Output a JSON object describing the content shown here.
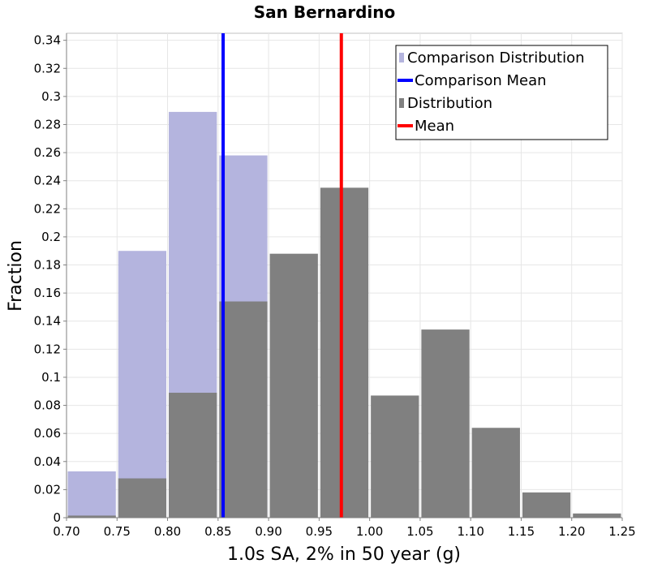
{
  "chart_data": {
    "type": "bar",
    "title": "San Bernardino",
    "xlabel": "1.0s SA, 2% in 50 year (g)",
    "ylabel": "Fraction",
    "xlim": [
      0.7,
      1.25
    ],
    "ylim": [
      0,
      0.345
    ],
    "x_ticks": [
      "0.70",
      "0.75",
      "0.80",
      "0.85",
      "0.90",
      "0.95",
      "1.00",
      "1.05",
      "1.10",
      "1.15",
      "1.20",
      "1.25"
    ],
    "y_ticks": [
      "0",
      "0.02",
      "0.04",
      "0.06",
      "0.08",
      "0.1",
      "0.12",
      "0.14",
      "0.16",
      "0.18",
      "0.2",
      "0.22",
      "0.24",
      "0.26",
      "0.28",
      "0.3",
      "0.32",
      "0.34"
    ],
    "bin_width": 0.05,
    "bin_starts": [
      0.7,
      0.75,
      0.8,
      0.85,
      0.9,
      0.95,
      1.0,
      1.05,
      1.1,
      1.15,
      1.2
    ],
    "grid": true,
    "legend_position": "top-right",
    "series": [
      {
        "name": "Comparison Distribution",
        "kind": "histogram",
        "color": "#b4b4de",
        "values": [
          0.033,
          0.19,
          0.289,
          0.258,
          0,
          0,
          0,
          0,
          0,
          0,
          0
        ]
      },
      {
        "name": "Comparison Mean",
        "kind": "vline",
        "color": "#0000ff",
        "x": 0.855
      },
      {
        "name": "Distribution",
        "kind": "histogram",
        "color": "#808080",
        "values": [
          0.0015,
          0.028,
          0.089,
          0.154,
          0.188,
          0.235,
          0.087,
          0.134,
          0.064,
          0.018,
          0.003
        ]
      },
      {
        "name": "Mean",
        "kind": "vline",
        "color": "#ff0000",
        "x": 0.972
      }
    ]
  }
}
